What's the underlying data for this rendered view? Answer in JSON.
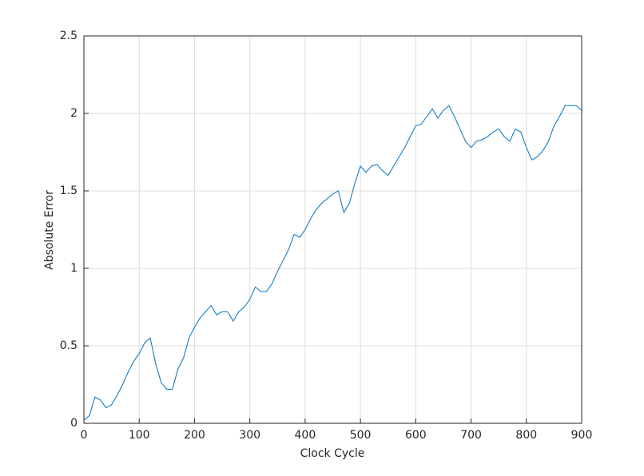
{
  "chart_data": {
    "type": "line",
    "x_label": "Clock Cycle",
    "y_label": "Absolute Error",
    "x": [
      0,
      10,
      20,
      30,
      40,
      50,
      60,
      70,
      80,
      90,
      100,
      110,
      120,
      130,
      140,
      150,
      160,
      170,
      180,
      190,
      200,
      210,
      220,
      230,
      240,
      250,
      260,
      270,
      280,
      290,
      300,
      310,
      320,
      330,
      340,
      350,
      360,
      370,
      380,
      390,
      400,
      410,
      420,
      430,
      440,
      450,
      460,
      470,
      480,
      490,
      500,
      510,
      520,
      530,
      540,
      550,
      560,
      570,
      580,
      590,
      600,
      610,
      620,
      630,
      640,
      650,
      660,
      670,
      680,
      690,
      700,
      710,
      720,
      730,
      740,
      750,
      760,
      770,
      780,
      790,
      800,
      810,
      820,
      830,
      840,
      850,
      860,
      870,
      880,
      890,
      900
    ],
    "series": [
      {
        "color": "#0072bd",
        "values": [
          0.02,
          0.05,
          0.17,
          0.15,
          0.1,
          0.12,
          0.18,
          0.25,
          0.33,
          0.4,
          0.45,
          0.52,
          0.55,
          0.38,
          0.26,
          0.22,
          0.22,
          0.35,
          0.42,
          0.55,
          0.62,
          0.68,
          0.72,
          0.76,
          0.7,
          0.72,
          0.72,
          0.66,
          0.72,
          0.75,
          0.8,
          0.88,
          0.85,
          0.85,
          0.9,
          0.98,
          1.05,
          1.12,
          1.22,
          1.2,
          1.25,
          1.32,
          1.38,
          1.42,
          1.45,
          1.48,
          1.5,
          1.36,
          1.42,
          1.55,
          1.66,
          1.62,
          1.66,
          1.67,
          1.63,
          1.6,
          1.66,
          1.72,
          1.78,
          1.85,
          1.92,
          1.93,
          1.98,
          2.03,
          1.97,
          2.02,
          2.05,
          1.98,
          1.9,
          1.82,
          1.78,
          1.82,
          1.83,
          1.85,
          1.88,
          1.9,
          1.85,
          1.82,
          1.9,
          1.88,
          1.78,
          1.7,
          1.72,
          1.76,
          1.82,
          1.92,
          1.98,
          2.05,
          2.05,
          2.05,
          2.02
        ]
      }
    ],
    "xlim": [
      0,
      900
    ],
    "xticks": [
      0,
      100,
      200,
      300,
      400,
      500,
      600,
      700,
      800,
      900
    ],
    "ylim": [
      0,
      2.5
    ],
    "yticks": [
      0,
      0.5,
      1,
      1.5,
      2,
      2.5
    ],
    "grid": true
  }
}
